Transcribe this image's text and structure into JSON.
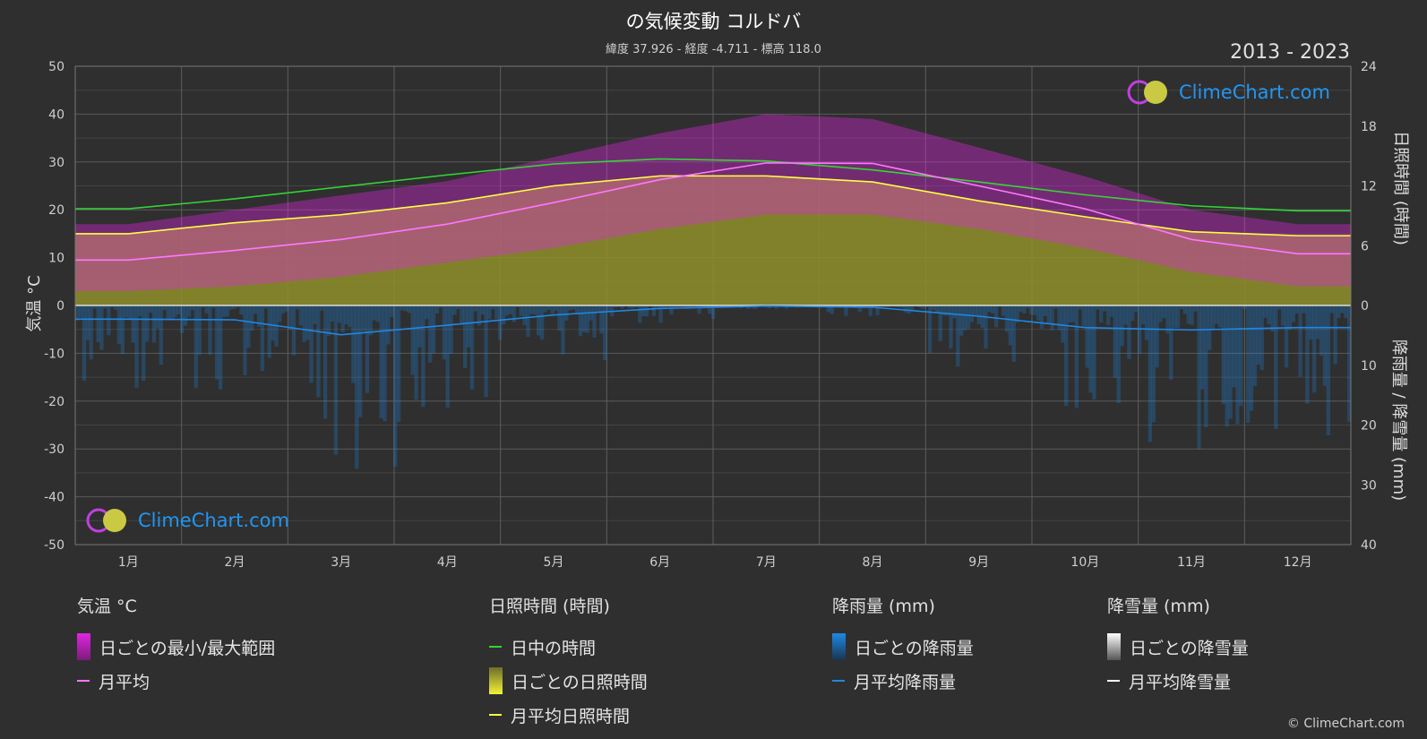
{
  "header": {
    "title": "の気候変動 コルドバ",
    "subtitle": "緯度 37.926 - 経度 -4.711 - 標高 118.0",
    "years": "2013 - 2023"
  },
  "axes": {
    "left_title": "気温 °C",
    "right_top_title": "日照時間 (時間)",
    "right_bottom_title": "降雨量 / 降雪量 (mm)"
  },
  "logo": {
    "text": "ClimeChart.com"
  },
  "legend": {
    "temperature": {
      "heading": "気温 °C",
      "range": "日ごとの最小/最大範囲",
      "mean": "月平均"
    },
    "sunshine": {
      "heading": "日照時間 (時間)",
      "daylight": "日中の時間",
      "daily_sun": "日ごとの日照時間",
      "mean_sun": "月平均日照時間"
    },
    "rain": {
      "heading": "降雨量 (mm)",
      "daily": "日ごとの降雨量",
      "mean": "月平均降雨量"
    },
    "snow": {
      "heading": "降雪量 (mm)",
      "daily": "日ごとの降雪量",
      "mean": "月平均降雪量"
    }
  },
  "copyright": "© ClimeChart.com",
  "colors": {
    "background": "#2f2f2f",
    "temp_range": "#e026e0",
    "temp_mean": "#ff77ff",
    "daylight": "#35d435",
    "sunshine_fill": "#8f8f2c",
    "sunshine_mean": "#ffff44",
    "rain": "#1e88e5",
    "snow": "#ffffff"
  },
  "chart_data": {
    "type": "line",
    "categories": [
      "1月",
      "2月",
      "3月",
      "4月",
      "5月",
      "6月",
      "7月",
      "8月",
      "9月",
      "10月",
      "11月",
      "12月"
    ],
    "left_axis": {
      "ticks": [
        50,
        40,
        30,
        20,
        10,
        0,
        -10,
        -20,
        -30,
        -40,
        -50
      ],
      "ylim": [
        -50,
        50
      ]
    },
    "right_axis_sun": {
      "ticks": [
        24,
        18,
        12,
        6,
        0
      ],
      "ylim": [
        0,
        24
      ]
    },
    "right_axis_rain": {
      "ticks": [
        0,
        10,
        20,
        30,
        40
      ],
      "ylim": [
        0,
        40
      ]
    },
    "series": [
      {
        "name": "日中の時間",
        "unit": "hours",
        "values": [
          9.7,
          10.7,
          11.9,
          13.1,
          14.2,
          14.7,
          14.5,
          13.6,
          12.4,
          11.1,
          10.0,
          9.5
        ]
      },
      {
        "name": "月平均日照時間",
        "unit": "hours",
        "values": [
          7.2,
          8.3,
          9.1,
          10.3,
          12.0,
          13.0,
          13.0,
          12.4,
          10.5,
          8.9,
          7.4,
          7.0
        ]
      },
      {
        "name": "月平均",
        "unit": "°C",
        "values": [
          9.5,
          11.5,
          13.8,
          17.0,
          21.5,
          26.3,
          29.8,
          29.7,
          25.0,
          20.2,
          13.8,
          10.8
        ]
      },
      {
        "name": "月平均降雨量",
        "unit": "mm",
        "values": [
          2.3,
          2.4,
          4.9,
          3.3,
          1.6,
          0.5,
          0.1,
          0.3,
          1.8,
          3.7,
          4.1,
          3.7
        ]
      }
    ],
    "daily_temp_range": {
      "min": [
        3,
        4,
        6,
        9,
        12,
        16,
        19,
        19,
        16,
        12,
        7,
        4
      ],
      "max": [
        17,
        20,
        23,
        26,
        31,
        36,
        40,
        39,
        33,
        27,
        20,
        17
      ]
    },
    "snow_mean": [
      0,
      0,
      0,
      0,
      0,
      0,
      0,
      0,
      0,
      0,
      0,
      0
    ]
  }
}
